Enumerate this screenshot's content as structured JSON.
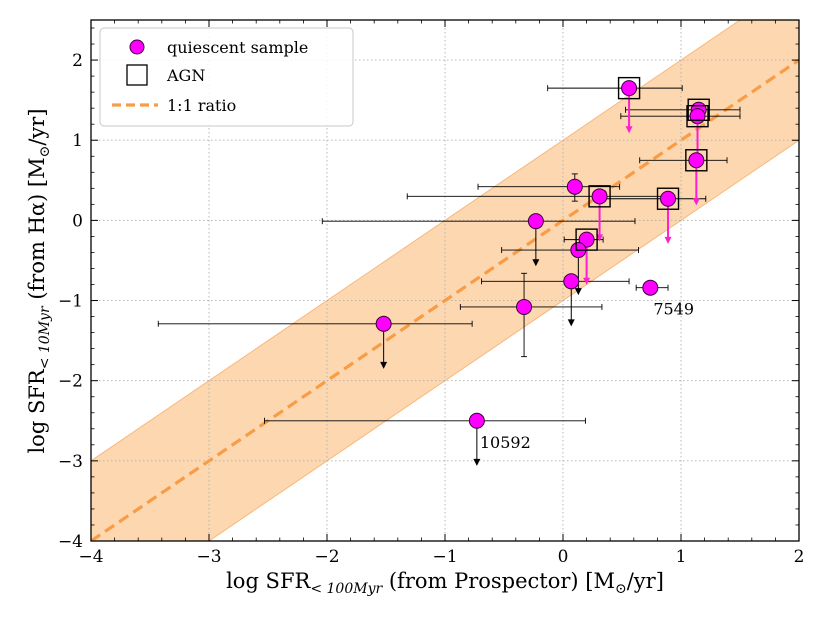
{
  "chart_data": {
    "type": "scatter",
    "xlim": [
      -4,
      2
    ],
    "ylim": [
      -4,
      2.5
    ],
    "xticks": [
      "−4",
      "−3",
      "−2",
      "−1",
      "0",
      "1",
      "2"
    ],
    "yticks": [
      "−4",
      "−3",
      "−2",
      "−1",
      "0",
      "1",
      "2"
    ],
    "xlabel": {
      "main": "log SFR",
      "sub": "< 100Myr",
      "rest": " (from Prospector) [M",
      "sun": "⊙",
      "end": "/yr]"
    },
    "ylabel": {
      "main": "log SFR",
      "sub": "< 10Myr",
      "rest": " (from Hα) [M",
      "sun": "⊙",
      "end": "/yr]"
    },
    "grid": true,
    "legend_position": "top-left",
    "legend": [
      {
        "label": "quiescent sample",
        "marker": "magenta-circle"
      },
      {
        "label": "AGN",
        "marker": "open-square"
      },
      {
        "label": "1:1 ratio",
        "marker": "dashed-line"
      }
    ],
    "one_to_one": {
      "x": [
        -4,
        2
      ],
      "y": [
        -4,
        2
      ],
      "band_halfwidth_dex": 1
    },
    "colors": {
      "points": "#ff00ff",
      "band": "#fdd0a2",
      "band_edge": "#f8b87c",
      "line": "#f89c45",
      "errorbars": "#000000",
      "upper_limit_arrows": "#ff1fd0",
      "grid": "#b0b0b0"
    },
    "points": [
      {
        "x": 0.56,
        "y": 1.65,
        "xerr": [
          0.69,
          0.45
        ],
        "agn": true,
        "ul": "magenta"
      },
      {
        "x": 1.15,
        "y": 1.38,
        "xerr": [
          0.62,
          0.35
        ],
        "agn": true,
        "ul": "none"
      },
      {
        "x": 1.14,
        "y": 1.3,
        "xerr": [
          0.65,
          0.36
        ],
        "agn": true,
        "ul": "magenta"
      },
      {
        "x": 1.13,
        "y": 0.75,
        "xerr": [
          0.48,
          0.26
        ],
        "agn": true,
        "ul": "magenta"
      },
      {
        "x": 0.1,
        "y": 0.42,
        "xerr": [
          0.82,
          0.38
        ],
        "yerr": [
          0.18,
          0.16
        ],
        "agn": false,
        "ul": "none"
      },
      {
        "x": 0.31,
        "y": 0.3,
        "xerr": [
          1.63,
          0.54
        ],
        "agn": true,
        "ul": "magenta"
      },
      {
        "x": 0.89,
        "y": 0.27,
        "xerr": [
          0.61,
          0.32
        ],
        "agn": true,
        "ul": "magenta"
      },
      {
        "x": -0.23,
        "y": -0.01,
        "xerr": [
          1.81,
          0.84
        ],
        "agn": false,
        "ul": "black"
      },
      {
        "x": 0.2,
        "y": -0.24,
        "xerr": [
          0.19,
          0.14
        ],
        "agn": true,
        "ul": "magenta"
      },
      {
        "x": 0.13,
        "y": -0.37,
        "xerr": [
          0.65,
          0.51
        ],
        "agn": false,
        "ul": "black"
      },
      {
        "x": 0.07,
        "y": -0.76,
        "xerr": [
          0.76,
          0.49
        ],
        "agn": false,
        "ul": "black"
      },
      {
        "x": 0.74,
        "y": -0.84,
        "xerr": [
          0.12,
          0.15
        ],
        "agn": false,
        "ul": "none",
        "label": "7549"
      },
      {
        "x": -0.33,
        "y": -1.08,
        "xerr": [
          0.54,
          0.66
        ],
        "yerr": [
          0.62,
          0.42
        ],
        "agn": false,
        "ul": "none"
      },
      {
        "x": -1.52,
        "y": -1.29,
        "xerr": [
          1.91,
          0.75
        ],
        "agn": false,
        "ul": "black"
      },
      {
        "x": -0.73,
        "y": -2.5,
        "xerr": [
          1.8,
          0.92
        ],
        "agn": false,
        "ul": "black",
        "label": "10592"
      }
    ]
  }
}
